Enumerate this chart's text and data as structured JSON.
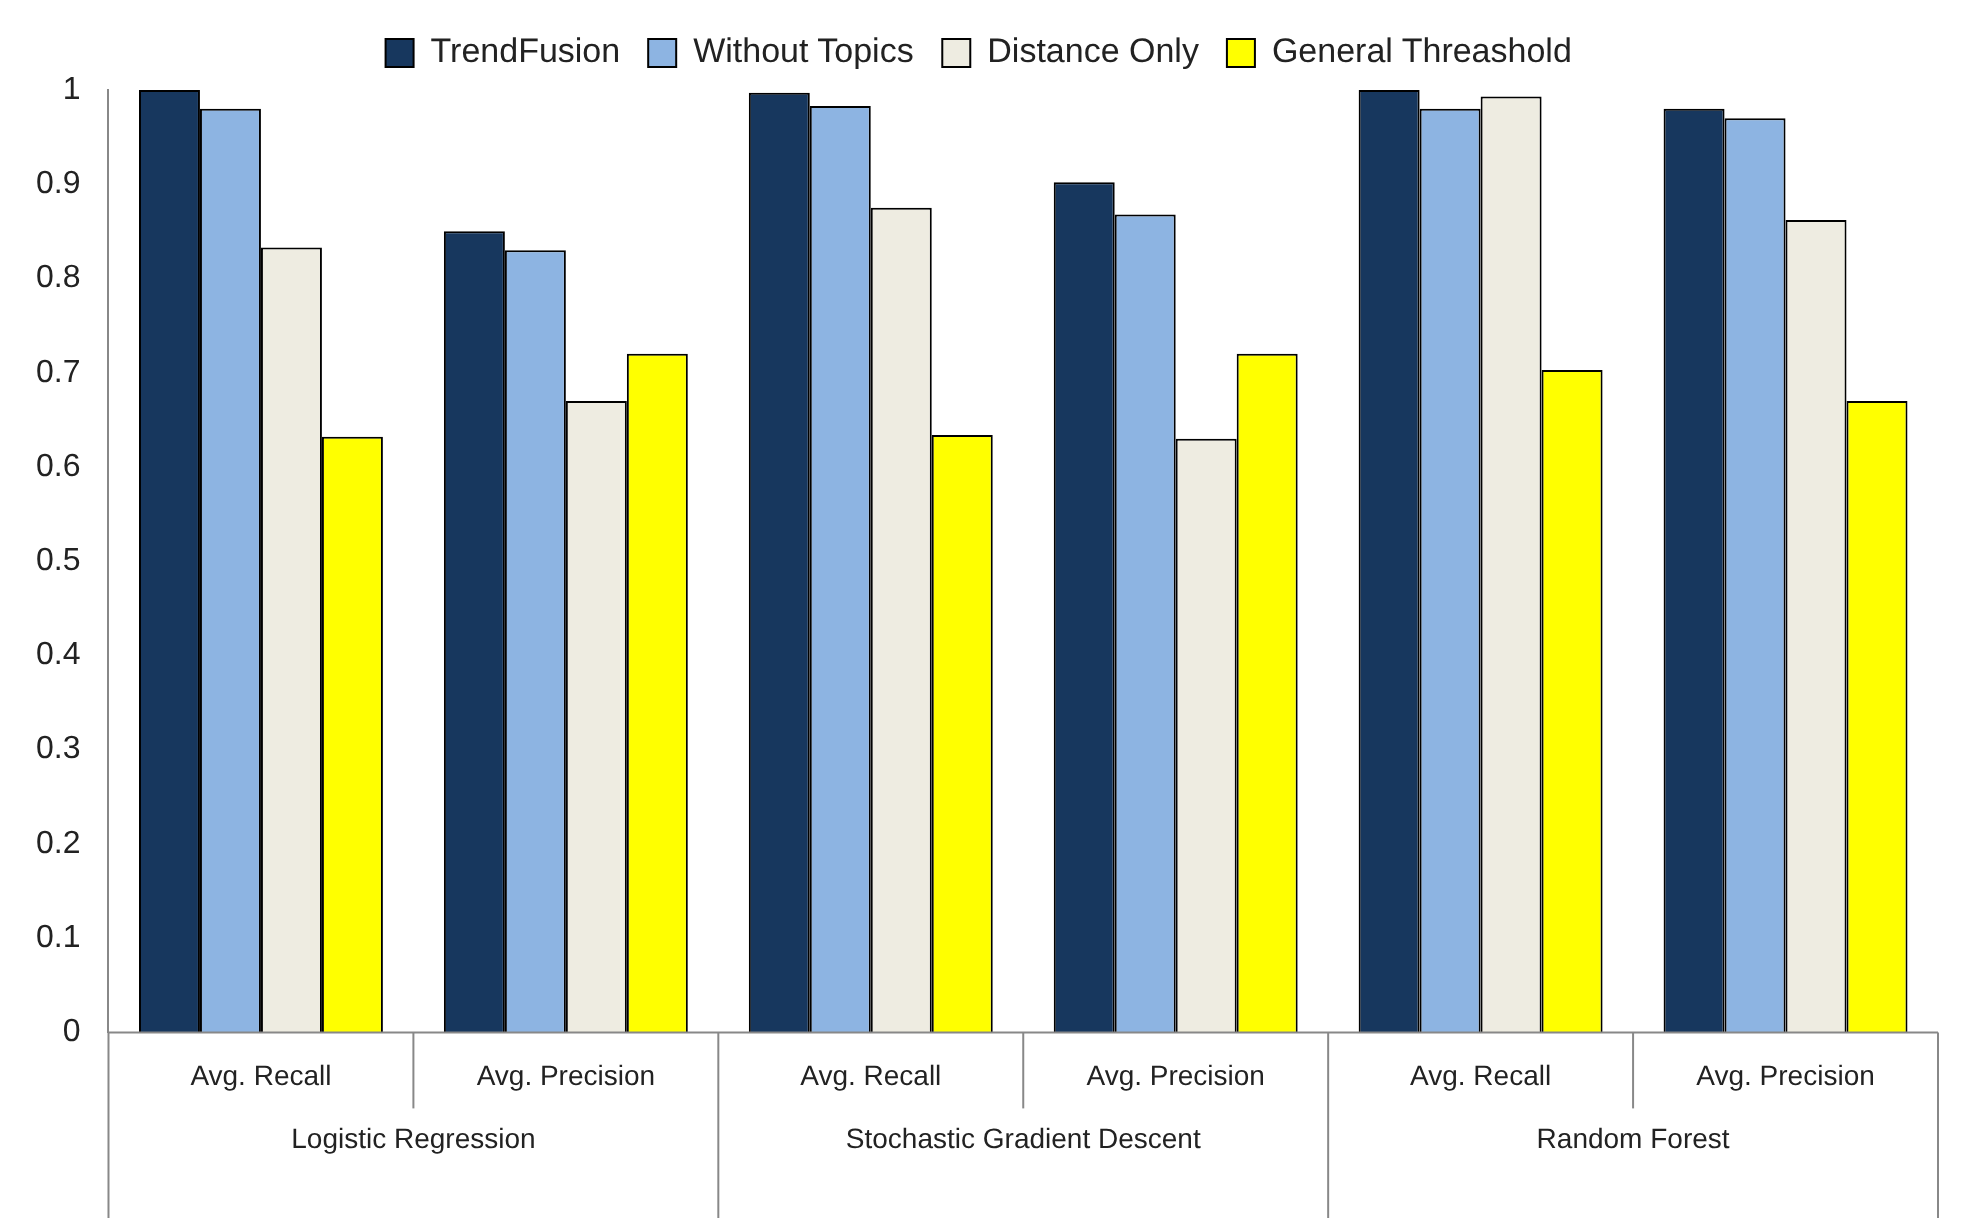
{
  "chart_data": {
    "type": "bar",
    "categories": [
      "Avg. Recall",
      "Avg. Precision",
      "Avg. Recall",
      "Avg. Precision",
      "Avg. Recall",
      "Avg. Precision"
    ],
    "series": [
      {
        "name": "TrendFusion",
        "color": "#17375e",
        "values": [
          1.0,
          0.85,
          0.997,
          0.902,
          1.0,
          0.98
        ]
      },
      {
        "name": "Without Topics",
        "color": "#8db4e2",
        "values": [
          0.98,
          0.83,
          0.983,
          0.868,
          0.98,
          0.97
        ]
      },
      {
        "name": "Distance Only",
        "color": "#eeece1",
        "values": [
          0.833,
          0.67,
          0.875,
          0.63,
          0.993,
          0.862
        ]
      },
      {
        "name": "General Threashold",
        "color": "#ffff00",
        "values": [
          0.632,
          0.72,
          0.634,
          0.72,
          0.703,
          0.67
        ]
      }
    ],
    "annotations": [
      "Logistic Regression",
      "Stochastic Gradient Descent",
      "Random Forest"
    ],
    "ylim": [
      0,
      1
    ],
    "yticks": [
      0,
      0.1,
      0.2,
      0.3,
      0.4,
      0.5,
      0.6,
      0.7,
      0.8,
      0.9,
      1
    ],
    "grid": false,
    "legend": "top"
  }
}
